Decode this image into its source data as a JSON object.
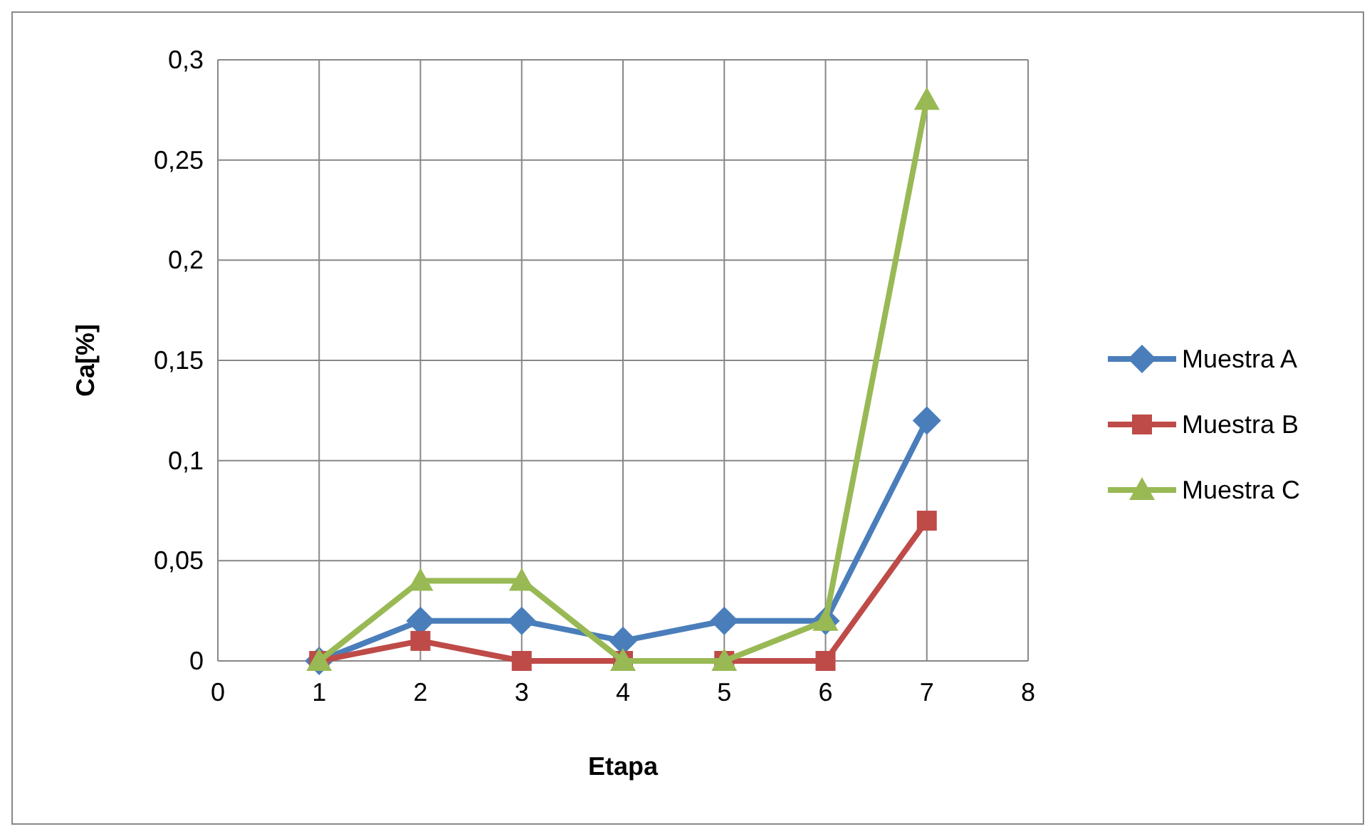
{
  "chart_data": {
    "type": "line",
    "xlabel": "Etapa",
    "ylabel": "Ca[%]",
    "xlim": [
      0,
      8
    ],
    "xticks": [
      0,
      1,
      2,
      3,
      4,
      5,
      6,
      7,
      8
    ],
    "ylim": [
      0,
      0.3
    ],
    "yticks": [
      0,
      {
        "value": 0.05,
        "label": "0,05"
      },
      {
        "value": 0.1,
        "label": "0,1"
      },
      {
        "value": 0.15,
        "label": "0,15"
      },
      {
        "value": 0.2,
        "label": "0,2"
      },
      {
        "value": 0.25,
        "label": "0,25"
      },
      {
        "value": 0.3,
        "label": "0,3"
      }
    ],
    "grid": true,
    "legend": "right",
    "line_style": "solid",
    "x": [
      1,
      2,
      3,
      4,
      5,
      6,
      7
    ],
    "series": [
      {
        "name": "Muestra A",
        "color": "#4a7ebb",
        "marker": "diamond",
        "values": [
          0,
          0.02,
          0.02,
          0.01,
          0.02,
          0.02,
          0.12
        ]
      },
      {
        "name": "Muestra B",
        "color": "#be4b48",
        "marker": "square",
        "values": [
          0,
          0.01,
          0,
          0,
          0,
          0,
          0.07
        ]
      },
      {
        "name": "Muestra C",
        "color": "#98b954",
        "marker": "triangle",
        "values": [
          0,
          0.04,
          0.04,
          0,
          0,
          0.02,
          0.28
        ]
      }
    ]
  }
}
